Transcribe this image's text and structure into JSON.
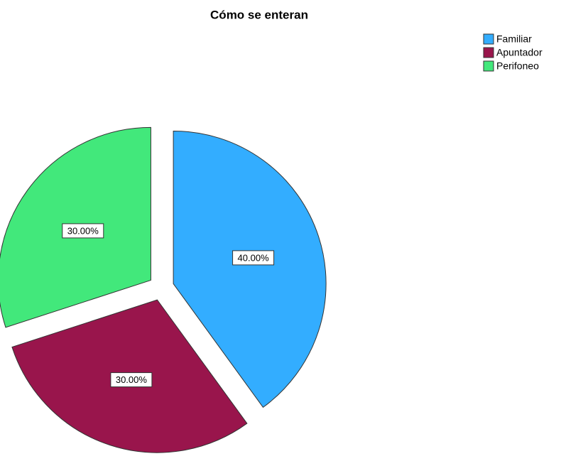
{
  "chart_data": {
    "type": "pie",
    "title": "Cómo se enteran",
    "categories": [
      "Familiar",
      "Apuntador",
      "Perifoneo"
    ],
    "values": [
      40,
      30,
      30
    ],
    "value_labels": [
      "40.00%",
      "30.00%",
      "30.00%"
    ],
    "colors": [
      "#33adff",
      "#99154c",
      "#42e87b"
    ],
    "legend": "top-right"
  }
}
